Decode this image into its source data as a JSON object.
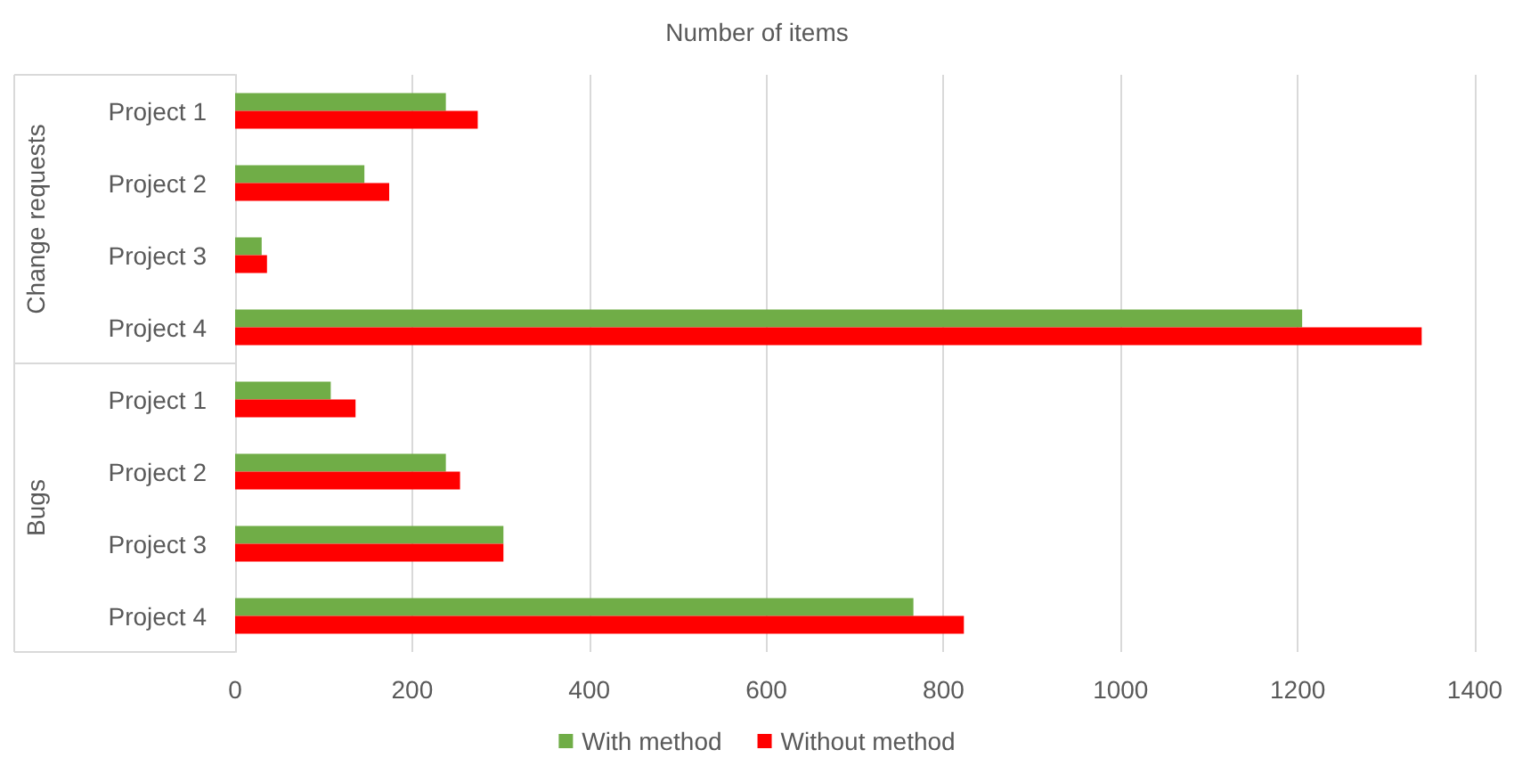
{
  "chart_data": {
    "type": "bar",
    "orientation": "horizontal",
    "title": "Number of items",
    "categories": [
      "Project 1",
      "Project 2",
      "Project 3",
      "Project 4",
      "Project 1",
      "Project 2",
      "Project 3",
      "Project 4"
    ],
    "series": [
      {
        "name": "With method",
        "color": "#70ad47",
        "values": [
          238,
          146,
          30,
          1205,
          108,
          238,
          303,
          766
        ]
      },
      {
        "name": "Without method",
        "color": "#ff0000",
        "values": [
          274,
          174,
          36,
          1340,
          136,
          254,
          303,
          823
        ]
      }
    ],
    "annotations": [
      "Change requests",
      "Bugs"
    ],
    "xlim": [
      0,
      1400
    ],
    "xticks": [
      0,
      200,
      400,
      600,
      800,
      1000,
      1200,
      1400
    ],
    "grid": "x",
    "legend": "bottom"
  }
}
